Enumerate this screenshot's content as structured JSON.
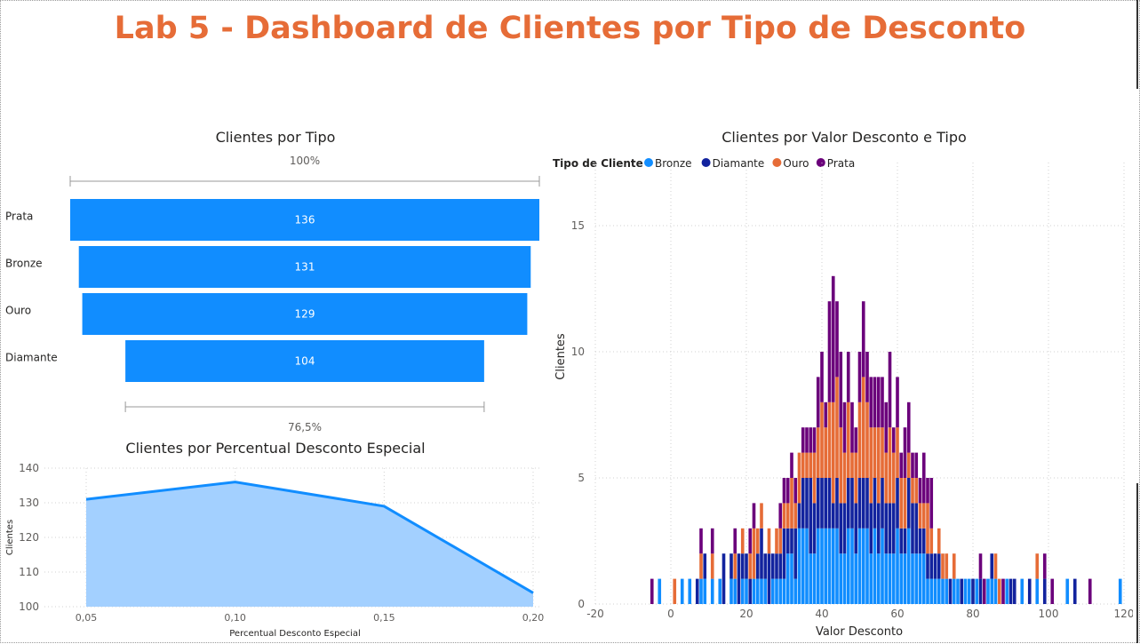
{
  "page": {
    "title": "Lab 5 - Dashboard de Clientes por Tipo de Desconto"
  },
  "chart_data": [
    {
      "type": "funnel",
      "title": "Clientes por Tipo",
      "categories": [
        "Prata",
        "Bronze",
        "Ouro",
        "Diamante"
      ],
      "values": [
        136,
        131,
        129,
        104
      ],
      "value_labels": [
        "136",
        "131",
        "129",
        "104"
      ],
      "top_percent_label": "100%",
      "bottom_percent_label": "76,5%",
      "color": "#118DFF"
    },
    {
      "type": "area",
      "title": "Clientes por Percentual Desconto Especial",
      "xlabel": "Percentual Desconto Especial",
      "ylabel": "Clientes",
      "x": [
        0.05,
        0.1,
        0.15,
        0.2
      ],
      "x_tick_labels": [
        "0,05",
        "0,10",
        "0,15",
        "0,20"
      ],
      "values": [
        131,
        136,
        129,
        104
      ],
      "ylim": [
        100,
        140
      ],
      "y_ticks": [
        100,
        110,
        120,
        130,
        140
      ],
      "line_color": "#118DFF",
      "fill_color": "#A3D0FF",
      "grid": true
    },
    {
      "type": "bar",
      "stacked": true,
      "title": "Clientes por Valor Desconto e Tipo",
      "xlabel": "Valor Desconto",
      "ylabel": "Clientes",
      "legend_title": "Tipo de Cliente",
      "legend_position": "top-left",
      "xlim": [
        -20,
        120
      ],
      "x_ticks": [
        -20,
        0,
        20,
        40,
        60,
        80,
        100,
        120
      ],
      "ylim": [
        0,
        17.5
      ],
      "y_ticks": [
        0,
        5,
        10,
        15
      ],
      "grid": true,
      "series": [
        {
          "name": "Bronze",
          "color": "#118DFF"
        },
        {
          "name": "Diamante",
          "color": "#12239E"
        },
        {
          "name": "Ouro",
          "color": "#E66C37"
        },
        {
          "name": "Prata",
          "color": "#6B007B"
        }
      ],
      "x": [
        -5,
        -3,
        1,
        3,
        5,
        7,
        8,
        9,
        11,
        13,
        14,
        16,
        17,
        18,
        19,
        20,
        21,
        22,
        23,
        24,
        25,
        26,
        27,
        28,
        29,
        30,
        31,
        32,
        33,
        34,
        35,
        36,
        37,
        38,
        39,
        40,
        41,
        42,
        43,
        44,
        45,
        46,
        47,
        48,
        49,
        50,
        51,
        52,
        53,
        54,
        55,
        56,
        57,
        58,
        59,
        60,
        61,
        62,
        63,
        64,
        65,
        66,
        67,
        68,
        69,
        70,
        71,
        72,
        73,
        74,
        75,
        76,
        77,
        78,
        79,
        80,
        81,
        82,
        83,
        84,
        85,
        86,
        87,
        88,
        89,
        90,
        91,
        93,
        95,
        97,
        99,
        101,
        105,
        107,
        111,
        119
      ],
      "stacks": [
        [
          0,
          0,
          0,
          1
        ],
        [
          1,
          0,
          0,
          0
        ],
        [
          0,
          0,
          1,
          0
        ],
        [
          1,
          0,
          0,
          0
        ],
        [
          1,
          0,
          0,
          0
        ],
        [
          0,
          1,
          0,
          0
        ],
        [
          1,
          0,
          1,
          1
        ],
        [
          1,
          1,
          0,
          0
        ],
        [
          1,
          0,
          1,
          1
        ],
        [
          1,
          0,
          0,
          0
        ],
        [
          0,
          2,
          0,
          0
        ],
        [
          1,
          1,
          0,
          0
        ],
        [
          1,
          0,
          1,
          1
        ],
        [
          0,
          2,
          0,
          0
        ],
        [
          1,
          1,
          1,
          0
        ],
        [
          1,
          1,
          0,
          0
        ],
        [
          0,
          1,
          1,
          1
        ],
        [
          1,
          0,
          2,
          1
        ],
        [
          1,
          1,
          1,
          0
        ],
        [
          1,
          2,
          1,
          0
        ],
        [
          1,
          1,
          0,
          0
        ],
        [
          0,
          2,
          1,
          0
        ],
        [
          1,
          1,
          0,
          0
        ],
        [
          1,
          1,
          1,
          0
        ],
        [
          1,
          1,
          1,
          1
        ],
        [
          1,
          2,
          1,
          1
        ],
        [
          2,
          1,
          1,
          1
        ],
        [
          2,
          1,
          2,
          1
        ],
        [
          1,
          2,
          1,
          1
        ],
        [
          3,
          1,
          2,
          0
        ],
        [
          3,
          2,
          1,
          1
        ],
        [
          3,
          2,
          1,
          1
        ],
        [
          2,
          3,
          1,
          1
        ],
        [
          2,
          2,
          2,
          1
        ],
        [
          3,
          2,
          2,
          2
        ],
        [
          3,
          2,
          3,
          2
        ],
        [
          3,
          2,
          2,
          1
        ],
        [
          3,
          2,
          3,
          4
        ],
        [
          3,
          1,
          4,
          5
        ],
        [
          3,
          2,
          4,
          3
        ],
        [
          2,
          2,
          3,
          3
        ],
        [
          2,
          2,
          2,
          2
        ],
        [
          3,
          2,
          3,
          2
        ],
        [
          3,
          2,
          1,
          2
        ],
        [
          2,
          2,
          2,
          1
        ],
        [
          3,
          2,
          3,
          2
        ],
        [
          3,
          2,
          4,
          3
        ],
        [
          3,
          2,
          3,
          2
        ],
        [
          2,
          2,
          3,
          2
        ],
        [
          3,
          2,
          2,
          2
        ],
        [
          2,
          2,
          3,
          2
        ],
        [
          3,
          2,
          2,
          2
        ],
        [
          2,
          2,
          2,
          2
        ],
        [
          2,
          2,
          3,
          3
        ],
        [
          2,
          2,
          2,
          1
        ],
        [
          3,
          2,
          2,
          2
        ],
        [
          2,
          1,
          2,
          1
        ],
        [
          2,
          1,
          2,
          2
        ],
        [
          3,
          2,
          1,
          2
        ],
        [
          2,
          2,
          1,
          1
        ],
        [
          2,
          2,
          1,
          1
        ],
        [
          2,
          1,
          1,
          1
        ],
        [
          2,
          1,
          1,
          2
        ],
        [
          1,
          1,
          2,
          1
        ],
        [
          1,
          1,
          1,
          2
        ],
        [
          1,
          1,
          0,
          0
        ],
        [
          1,
          1,
          1,
          0
        ],
        [
          1,
          0,
          1,
          0
        ],
        [
          1,
          0,
          1,
          0
        ],
        [
          0,
          1,
          0,
          0
        ],
        [
          1,
          0,
          1,
          0
        ],
        [
          1,
          0,
          0,
          0
        ],
        [
          0,
          1,
          0,
          0
        ],
        [
          1,
          0,
          0,
          0
        ],
        [
          1,
          0,
          0,
          0
        ],
        [
          0,
          1,
          0,
          0
        ],
        [
          1,
          0,
          0,
          0
        ],
        [
          0,
          1,
          0,
          1
        ],
        [
          0,
          0,
          0,
          1
        ],
        [
          1,
          0,
          0,
          0
        ],
        [
          1,
          1,
          0,
          0
        ],
        [
          1,
          0,
          1,
          0
        ],
        [
          0,
          0,
          1,
          0
        ],
        [
          0,
          0,
          0,
          1
        ],
        [
          1,
          0,
          0,
          0
        ],
        [
          0,
          1,
          0,
          0
        ],
        [
          0,
          1,
          0,
          0
        ],
        [
          1,
          0,
          0,
          0
        ],
        [
          0,
          1,
          0,
          0
        ],
        [
          1,
          0,
          1,
          0
        ],
        [
          0,
          1,
          0,
          1
        ],
        [
          0,
          0,
          0,
          1
        ],
        [
          1,
          0,
          0,
          0
        ],
        [
          0,
          1,
          0,
          0
        ],
        [
          0,
          0,
          0,
          1
        ],
        [
          1,
          0,
          0,
          0
        ]
      ]
    }
  ]
}
